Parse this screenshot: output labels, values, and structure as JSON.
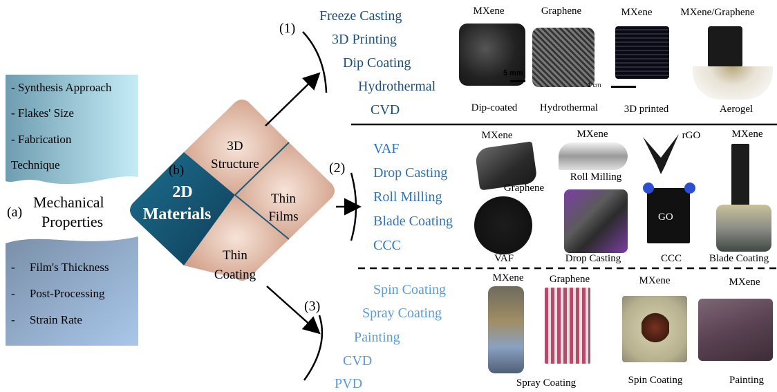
{
  "panel_a": {
    "label": "(a)",
    "title_line1": "Mechanical",
    "title_line2": "Properties",
    "top_items": [
      "- Synthesis Approach",
      "- Flakes' Size",
      "- Fabrication",
      "Technique"
    ],
    "bottom_items": [
      "-     Film's Thickness",
      "-     Post-Processing",
      "-     Strain Rate"
    ]
  },
  "panel_b": {
    "label": "(b)",
    "center_line1": "2D",
    "center_line2": "Materials",
    "structure_line1": "3D",
    "structure_line2": "Structure",
    "films_line1": "Thin",
    "films_line2": "Films",
    "coating_line1": "Thin",
    "coating_line2": "Coating"
  },
  "section1": {
    "number": "(1)",
    "methods": [
      "Freeze Casting",
      "3D Printing",
      "Dip Coating",
      "Hydrothermal",
      "CVD"
    ],
    "top_labels": [
      "MXene",
      "Graphene",
      "MXene",
      "MXene/Graphene"
    ],
    "bottom_labels": [
      "Dip-coated",
      "Hydrothermal",
      "3D printed",
      "Aerogel"
    ],
    "scale_5mm": "5 mm",
    "scale_1cm": "1 cm"
  },
  "section2": {
    "number": "(2)",
    "methods": [
      "VAF",
      "Drop Casting",
      "Roll Milling",
      "Blade Coating",
      "CCC"
    ],
    "label_mxene1": "MXene",
    "label_mxene2": "MXene",
    "label_roll": "Roll Milling",
    "label_rgo": "rGO",
    "label_mxene3": "MXene",
    "label_graphene": "Graphene",
    "label_go": "GO",
    "bottom_labels": [
      "VAF",
      "Drop Casting",
      "CCC",
      "Blade Coating"
    ]
  },
  "section3": {
    "number": "(3)",
    "methods": [
      "Spin Coating",
      "Spray Coating",
      "Painting",
      "CVD",
      "PVD"
    ],
    "top_labels": [
      "MXene",
      "Graphene",
      "MXene",
      "MXene"
    ],
    "bottom_labels": [
      "Spray Coating",
      "Spin Coating",
      "Painting"
    ]
  },
  "colors": {
    "method_dark": "#1f4e79",
    "method_mid": "#2e75b6",
    "method_light": "#5b9bd5",
    "diamond_center": "#1b5a78",
    "diamond_petal": "#dba890"
  }
}
